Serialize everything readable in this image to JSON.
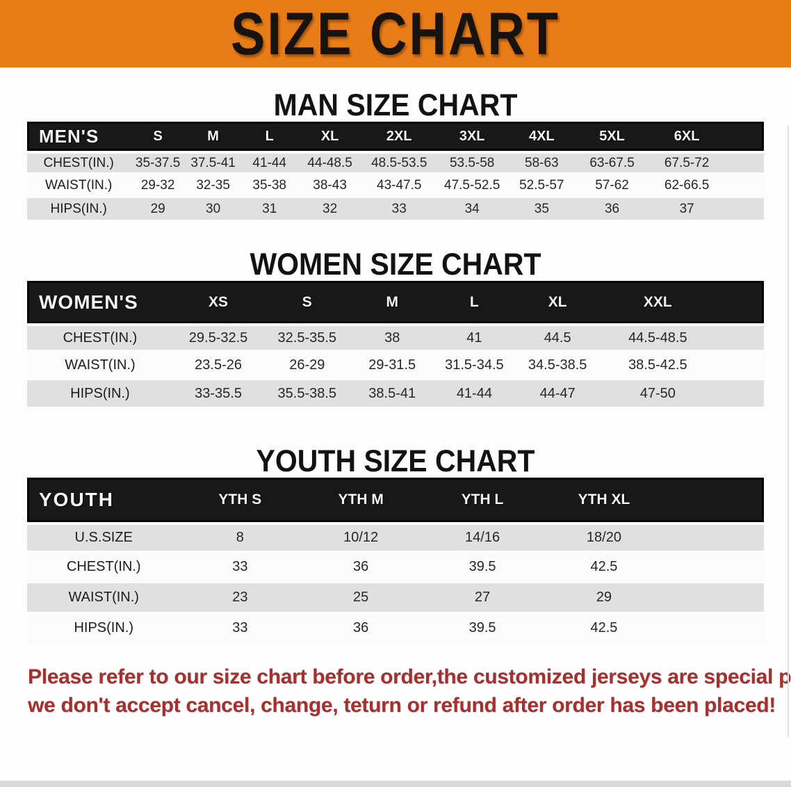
{
  "banner": {
    "title": "SIZE CHART",
    "bg_color": "#e87d17",
    "text_color": "#161311"
  },
  "sections": {
    "men": {
      "heading": "MAN SIZE CHART",
      "table": {
        "label": "MEN'S",
        "sizes": [
          "S",
          "M",
          "L",
          "XL",
          "2XL",
          "3XL",
          "4XL",
          "5XL",
          "6XL"
        ],
        "rows": [
          {
            "label": "CHEST(IN.)",
            "values": [
              "35-37.5",
              "37.5-41",
              "41-44",
              "44-48.5",
              "48.5-53.5",
              "53.5-58",
              "58-63",
              "63-67.5",
              "67.5-72"
            ]
          },
          {
            "label": "WAIST(IN.)",
            "values": [
              "29-32",
              "32-35",
              "35-38",
              "38-43",
              "43-47.5",
              "47.5-52.5",
              "52.5-57",
              "57-62",
              "62-66.5"
            ]
          },
          {
            "label": "HIPS(IN.)",
            "values": [
              "29",
              "30",
              "31",
              "32",
              "33",
              "34",
              "35",
              "36",
              "37"
            ]
          }
        ]
      }
    },
    "women": {
      "heading": "WOMEN SIZE CHART",
      "table": {
        "label": "WOMEN'S",
        "sizes": [
          "XS",
          "S",
          "M",
          "L",
          "XL",
          "XXL"
        ],
        "rows": [
          {
            "label": "CHEST(IN.)",
            "values": [
              "29.5-32.5",
              "32.5-35.5",
              "38",
              "41",
              "44.5",
              "44.5-48.5"
            ]
          },
          {
            "label": "WAIST(IN.)",
            "values": [
              "23.5-26",
              "26-29",
              "29-31.5",
              "31.5-34.5",
              "34.5-38.5",
              "38.5-42.5"
            ]
          },
          {
            "label": "HIPS(IN.)",
            "values": [
              "33-35.5",
              "35.5-38.5",
              "38.5-41",
              "41-44",
              "44-47",
              "47-50"
            ]
          }
        ]
      }
    },
    "youth": {
      "heading": "YOUTH SIZE CHART",
      "table": {
        "label": "YOUTH",
        "sizes": [
          "YTH S",
          "YTH M",
          "YTH L",
          "YTH XL"
        ],
        "rows": [
          {
            "label": "U.S.SIZE",
            "values": [
              "8",
              "10/12",
              "14/16",
              "18/20"
            ]
          },
          {
            "label": "CHEST(IN.)",
            "values": [
              "33",
              "36",
              "39.5",
              "42.5"
            ]
          },
          {
            "label": "WAIST(IN.)",
            "values": [
              "23",
              "25",
              "27",
              "29"
            ]
          },
          {
            "label": "HIPS(IN.)",
            "values": [
              "33",
              "36",
              "39.5",
              "42.5"
            ]
          }
        ]
      }
    }
  },
  "table_style": {
    "header_bg_color": "#181818",
    "header_text_color": "#f5f5f5",
    "stripe_color": "#e0e0e0"
  },
  "disclaimer": {
    "line1": "Please refer to our size chart before order,the customized jerseys are special products,",
    "line2": "we don't accept cancel, change, teturn or refund after order has been placed!",
    "color": "#a23230"
  }
}
